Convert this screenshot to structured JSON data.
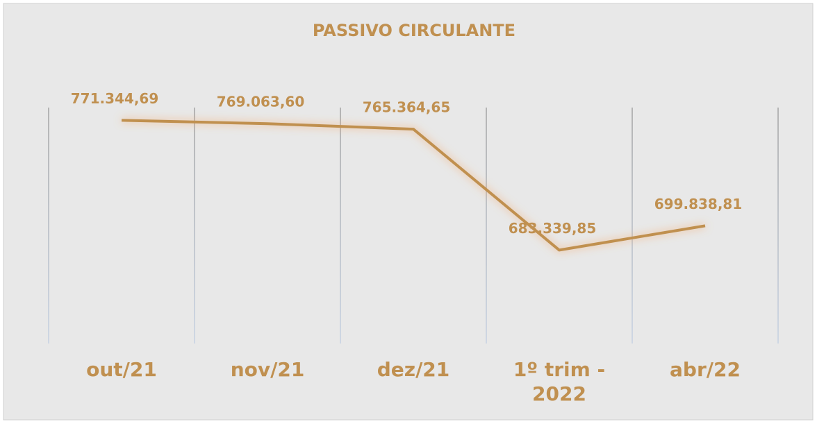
{
  "chart_data": {
    "type": "line",
    "title": "PASSIVO CIRCULANTE",
    "categories": [
      "out/21",
      "nov/21",
      "dez/21",
      "1º trim - 2022",
      "abr/22"
    ],
    "values": [
      771344.69,
      769063.6,
      765364.65,
      683339.85,
      699838.81
    ],
    "value_labels": [
      "771.344,69",
      "769.063,60",
      "765.364,65",
      "683.339,85",
      "699.838,81"
    ],
    "color": "#c09050",
    "ylim": [
      620000,
      780000
    ],
    "grid": true
  }
}
